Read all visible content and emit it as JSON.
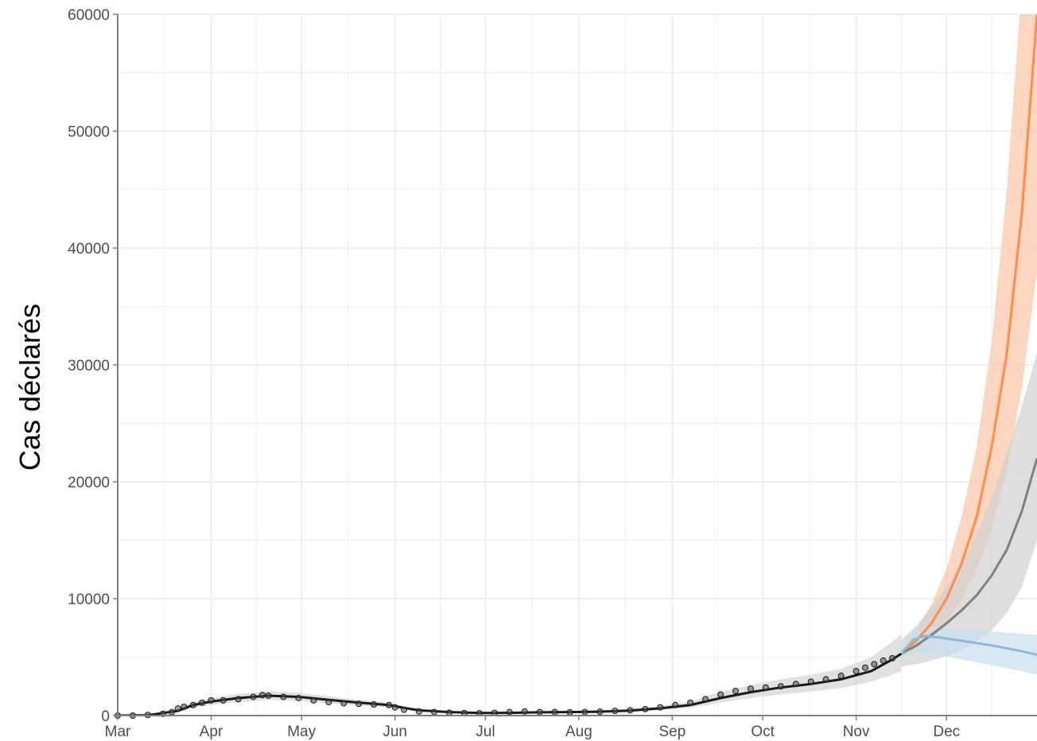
{
  "chart_data": {
    "type": "line",
    "title": "",
    "xlabel": "",
    "ylabel": "Cas déclarés",
    "ylim": [
      0,
      60000
    ],
    "xlim_days": [
      0,
      305
    ],
    "grid": true,
    "legend": "none",
    "y_ticks": [
      0,
      10000,
      20000,
      30000,
      40000,
      50000,
      60000
    ],
    "y_tick_labels": [
      "0",
      "10000",
      "20000",
      "30000",
      "40000",
      "50000",
      "60000"
    ],
    "x_ticks_days": [
      0,
      31,
      61,
      92,
      122,
      153,
      184,
      214,
      245,
      275
    ],
    "x_tick_labels": [
      "Mar",
      "Apr",
      "May",
      "Jun",
      "Jul",
      "Aug",
      "Sep",
      "Oct",
      "Nov",
      "Dec"
    ],
    "colors": {
      "observed": "#1a1a1a",
      "fit": "#1a1a1a",
      "fit_band": "#d9d9d9",
      "scenario_orange": "#ff8c4a",
      "scenario_orange_band": "#fcc4a8",
      "scenario_grey": "#808080",
      "scenario_grey_band": "#d0d0d0",
      "scenario_blue": "#8bb8dd",
      "scenario_blue_band": "#c9dff0",
      "grid": "#ebebeb",
      "axis": "#7f7f7f"
    },
    "observed": {
      "name": "",
      "x": [
        0,
        5,
        10,
        15,
        18,
        20,
        22,
        25,
        28,
        31,
        35,
        40,
        45,
        48,
        50,
        55,
        60,
        65,
        70,
        75,
        80,
        85,
        90,
        92,
        95,
        100,
        105,
        110,
        115,
        120,
        125,
        130,
        135,
        140,
        145,
        150,
        155,
        160,
        165,
        170,
        175,
        180,
        185,
        190,
        195,
        200,
        205,
        210,
        215,
        220,
        225,
        230,
        235,
        240,
        245,
        248,
        251,
        254,
        257
      ],
      "y": [
        0,
        0,
        50,
        150,
        300,
        600,
        750,
        900,
        1100,
        1300,
        1300,
        1400,
        1600,
        1750,
        1700,
        1600,
        1500,
        1300,
        1150,
        1050,
        1000,
        950,
        900,
        700,
        500,
        350,
        300,
        250,
        220,
        200,
        230,
        300,
        350,
        300,
        300,
        280,
        300,
        330,
        400,
        450,
        550,
        700,
        900,
        1100,
        1400,
        1800,
        2100,
        2300,
        2400,
        2500,
        2700,
        2900,
        3100,
        3400,
        3800,
        4100,
        4400,
        4700,
        4900
      ]
    },
    "fit": {
      "name": "",
      "x": [
        0,
        10,
        20,
        25,
        31,
        40,
        50,
        60,
        70,
        80,
        90,
        95,
        100,
        110,
        120,
        130,
        140,
        150,
        160,
        170,
        180,
        190,
        200,
        210,
        220,
        230,
        240,
        250,
        257,
        260
      ],
      "y": [
        0,
        30,
        400,
        900,
        1200,
        1500,
        1700,
        1600,
        1350,
        1100,
        900,
        650,
        450,
        300,
        220,
        230,
        280,
        300,
        330,
        420,
        620,
        900,
        1500,
        2000,
        2400,
        2700,
        3100,
        3800,
        4800,
        5300
      ],
      "lower": [
        0,
        0,
        250,
        650,
        900,
        1150,
        1350,
        1250,
        1050,
        850,
        700,
        500,
        320,
        200,
        140,
        150,
        190,
        210,
        230,
        300,
        450,
        650,
        1100,
        1500,
        1800,
        2050,
        2350,
        2900,
        3500,
        3800
      ],
      "upper": [
        0,
        80,
        600,
        1150,
        1500,
        1850,
        2100,
        1950,
        1650,
        1350,
        1100,
        800,
        580,
        400,
        300,
        310,
        370,
        400,
        440,
        560,
        820,
        1200,
        2000,
        2600,
        3100,
        3500,
        4000,
        5000,
        6300,
        7000
      ]
    },
    "scenarios": [
      {
        "name": "",
        "color_key": "scenario_orange",
        "x": [
          260,
          265,
          270,
          275,
          280,
          285,
          290,
          295,
          300,
          305
        ],
        "y": [
          5300,
          6400,
          7900,
          10000,
          13000,
          17000,
          23000,
          31000,
          43000,
          60000
        ],
        "lower": [
          5000,
          5600,
          6600,
          8000,
          10000,
          12500,
          16000,
          21000,
          28000,
          38000
        ],
        "upper": [
          5600,
          7300,
          9500,
          12600,
          17000,
          23000,
          32000,
          45000,
          64000,
          92000
        ]
      },
      {
        "name": "",
        "color_key": "scenario_grey",
        "x": [
          260,
          265,
          270,
          275,
          280,
          285,
          290,
          295,
          300,
          305
        ],
        "y": [
          5300,
          6000,
          6900,
          7900,
          9000,
          10300,
          12000,
          14200,
          17500,
          22000
        ],
        "lower": [
          4200,
          4400,
          4700,
          5100,
          5600,
          6300,
          7300,
          8800,
          11000,
          15000
        ],
        "upper": [
          6500,
          7700,
          9300,
          11000,
          13000,
          15500,
          18700,
          22500,
          26500,
          31000
        ]
      },
      {
        "name": "",
        "color_key": "scenario_blue",
        "x": [
          260,
          264,
          268,
          272,
          280,
          290,
          300,
          305
        ],
        "y": [
          5300,
          6500,
          6800,
          6700,
          6400,
          6000,
          5500,
          5200
        ],
        "lower": [
          5100,
          5300,
          5300,
          5200,
          4800,
          4300,
          3800,
          3500
        ],
        "upper": [
          5500,
          7300,
          7700,
          7600,
          7400,
          7200,
          7000,
          6900
        ]
      }
    ]
  }
}
